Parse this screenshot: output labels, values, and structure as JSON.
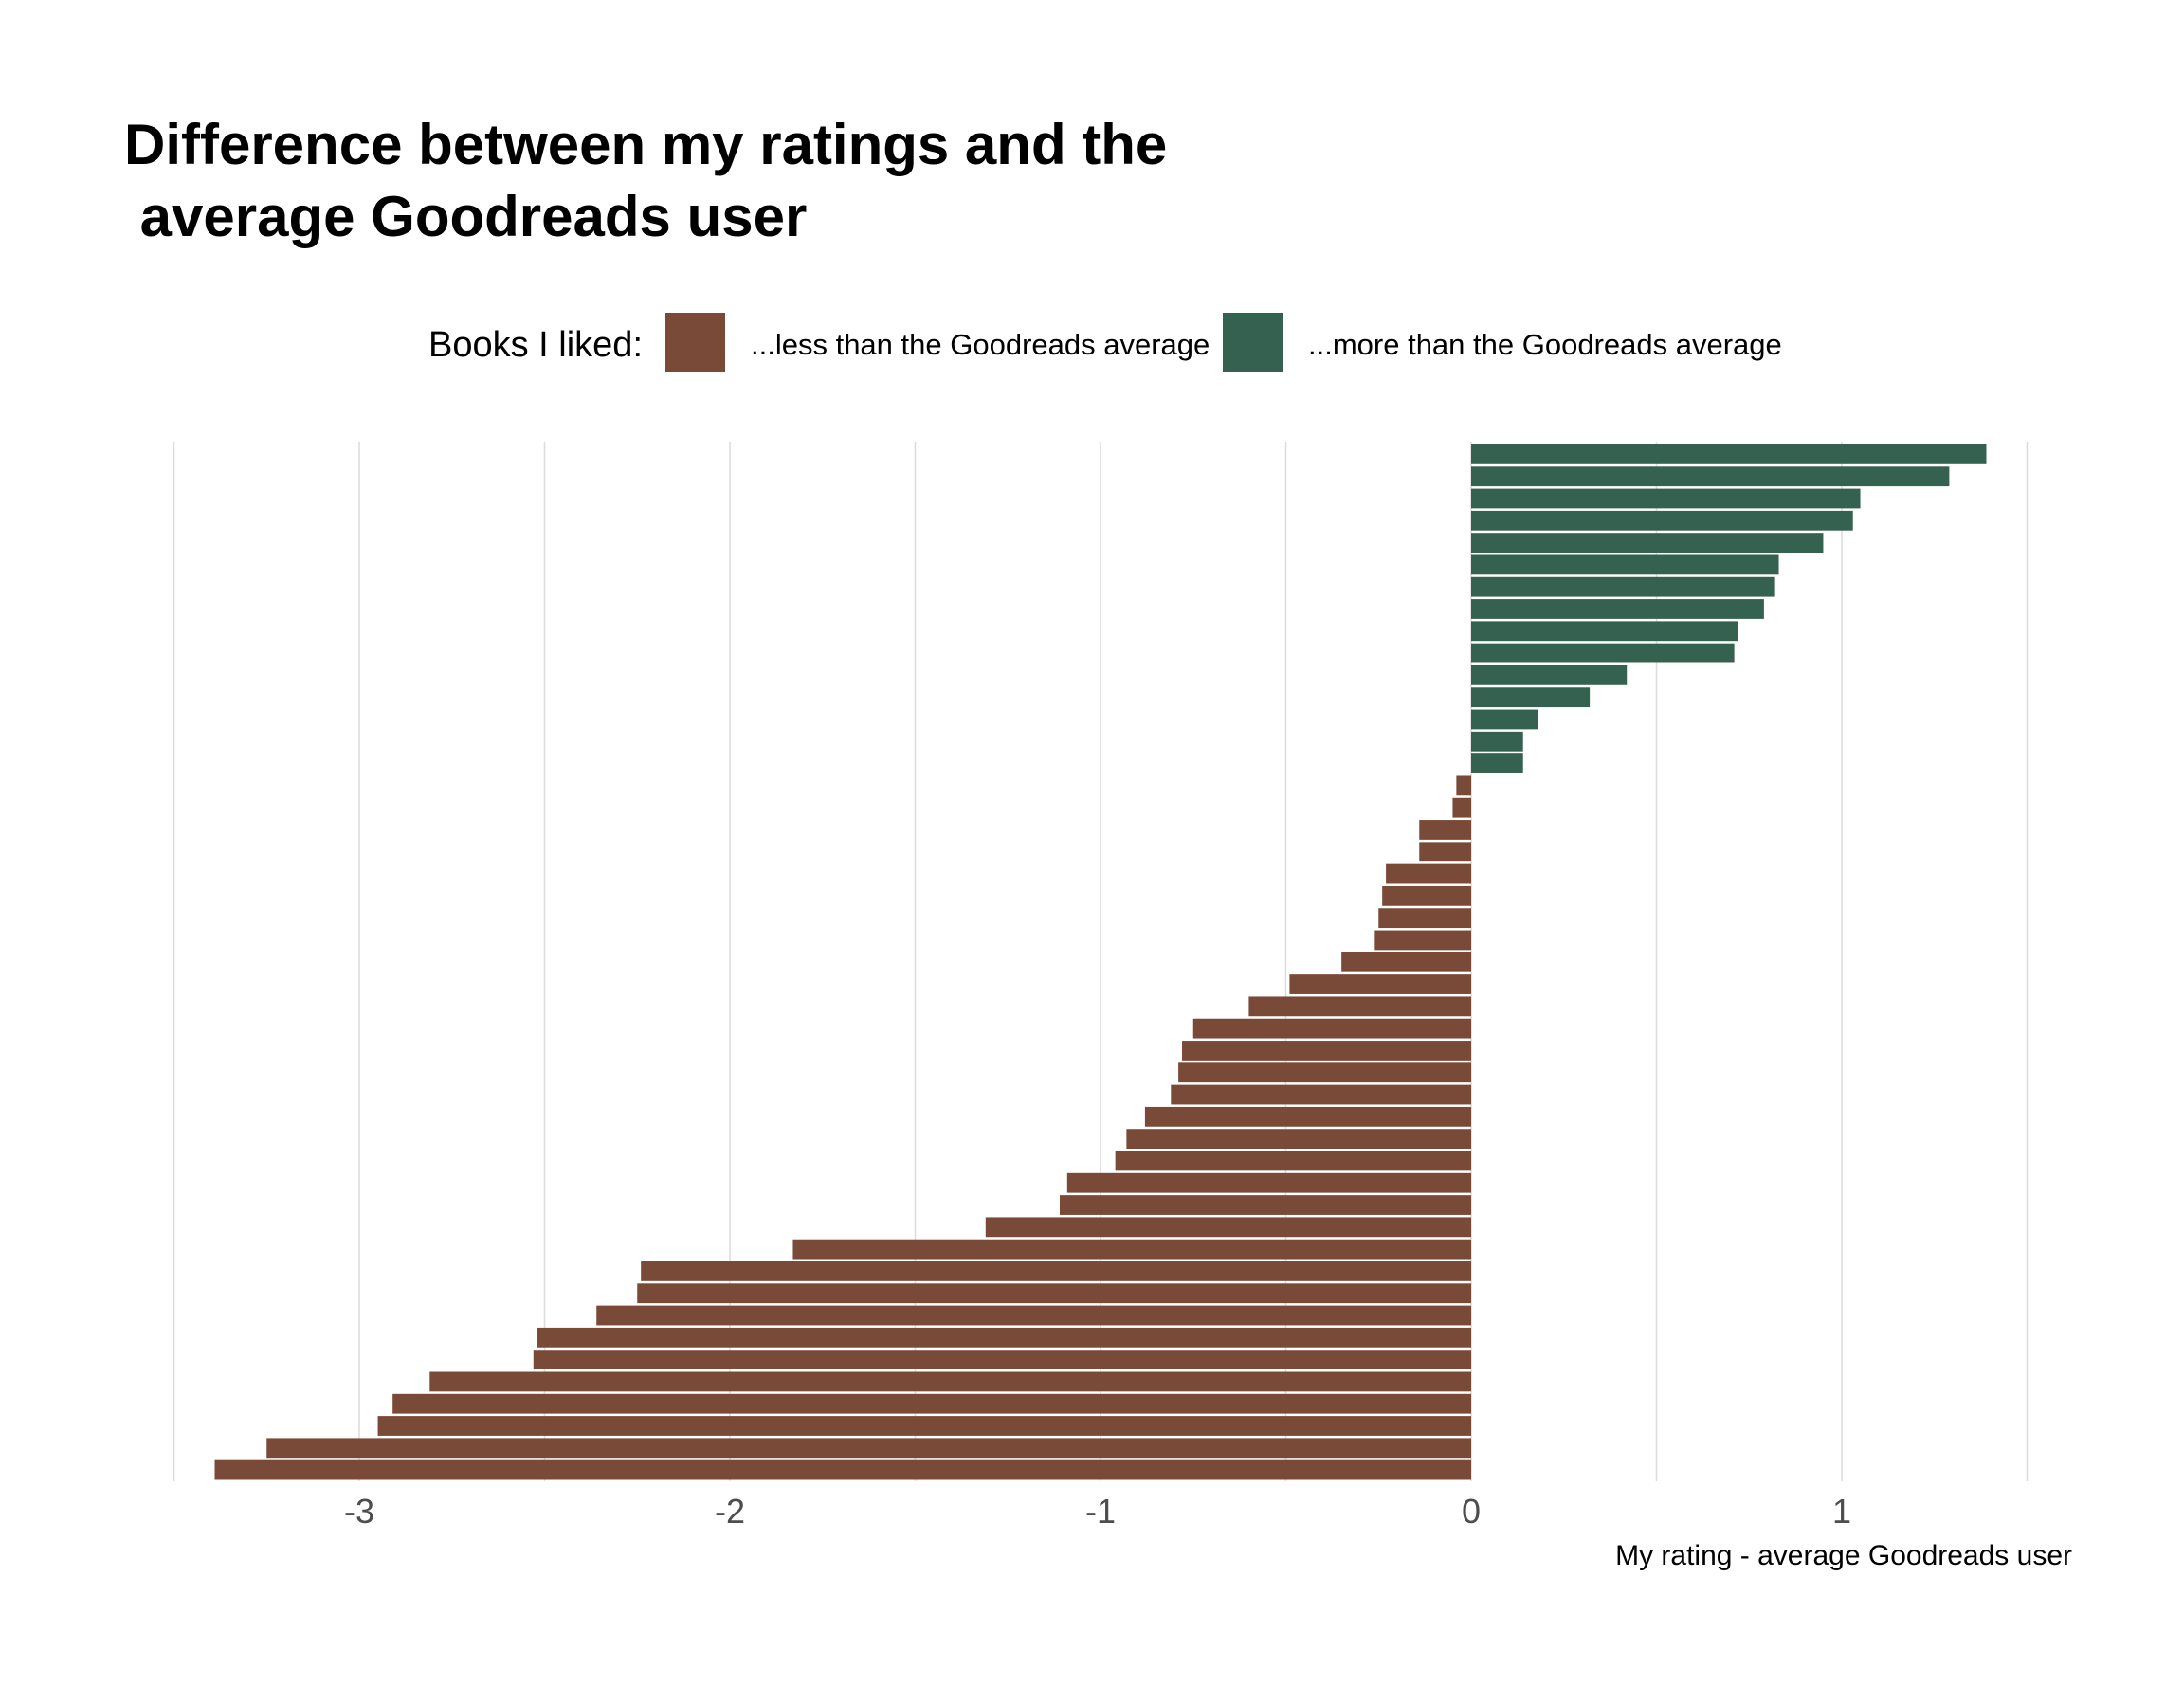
{
  "chart_data": {
    "type": "bar",
    "orientation": "horizontal",
    "title_lines": [
      "Difference between my ratings and the",
      " average Goodreads user"
    ],
    "legend": {
      "title": "Books I liked:",
      "placement": "top",
      "entries": [
        {
          "label": "...less than the Goodreads average",
          "color": "#7a4a38"
        },
        {
          "label": "...more than the Goodreads average",
          "color": "#356150"
        }
      ]
    },
    "xlabel": "My rating - average Goodreads user",
    "ylabel": "",
    "xlim": [
      -3.5,
      1.5
    ],
    "x_ticks": [
      -3,
      -2,
      -1,
      0,
      1
    ],
    "x_tick_labels": [
      "-3",
      "-2",
      "-1",
      "0",
      "1"
    ],
    "grid": "vertical major and minor",
    "colors": {
      "negative": "#7a4a38",
      "positive": "#356150",
      "grid": "#dcdcdc",
      "tick_text": "#4d4d4d"
    },
    "values": [
      1.39,
      1.29,
      1.05,
      1.03,
      0.95,
      0.83,
      0.82,
      0.79,
      0.72,
      0.71,
      0.42,
      0.32,
      0.18,
      0.14,
      0.14,
      -0.04,
      -0.05,
      -0.14,
      -0.14,
      -0.23,
      -0.24,
      -0.25,
      -0.26,
      -0.35,
      -0.49,
      -0.6,
      -0.75,
      -0.78,
      -0.79,
      -0.81,
      -0.88,
      -0.93,
      -0.96,
      -1.09,
      -1.11,
      -1.31,
      -1.83,
      -2.24,
      -2.25,
      -2.36,
      -2.52,
      -2.53,
      -2.81,
      -2.91,
      -2.95,
      -3.25,
      -3.39
    ]
  }
}
